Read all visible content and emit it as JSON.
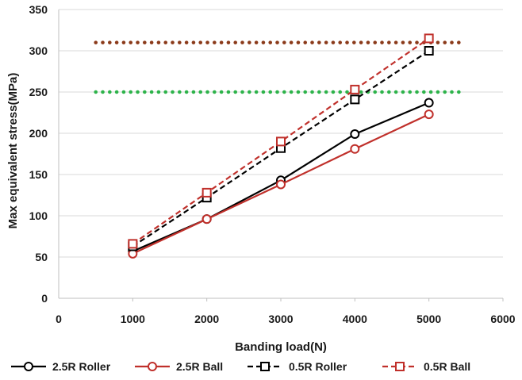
{
  "chart_data": {
    "type": "line",
    "title": "",
    "xlabel": "Banding load(N)",
    "ylabel": "Max equivalent stress(MPa)",
    "xlim": [
      0,
      6000
    ],
    "ylim": [
      0,
      350
    ],
    "xticks": [
      0,
      1000,
      2000,
      3000,
      4000,
      5000,
      6000
    ],
    "yticks": [
      0,
      50,
      100,
      150,
      200,
      250,
      300,
      350
    ],
    "grid": "horizontal",
    "legend_position": "bottom",
    "series": [
      {
        "name": "2.5R Roller",
        "color": "#000000",
        "dash": "solid",
        "marker": "circle",
        "x": [
          1000,
          2000,
          3000,
          4000,
          5000
        ],
        "y": [
          57,
          96,
          143,
          199,
          237
        ]
      },
      {
        "name": "2.5R Ball",
        "color": "#c0302b",
        "dash": "solid",
        "marker": "circle",
        "x": [
          1000,
          2000,
          3000,
          4000,
          5000
        ],
        "y": [
          54,
          96,
          138,
          181,
          223
        ]
      },
      {
        "name": "0.5R Roller",
        "color": "#000000",
        "dash": "dashed",
        "marker": "square",
        "x": [
          1000,
          2000,
          3000,
          4000,
          5000
        ],
        "y": [
          63,
          122,
          182,
          241,
          300
        ]
      },
      {
        "name": "0.5R Ball",
        "color": "#c0302b",
        "dash": "dashed",
        "marker": "square",
        "x": [
          1000,
          2000,
          3000,
          4000,
          5000
        ],
        "y": [
          66,
          128,
          190,
          253,
          315
        ]
      }
    ],
    "reference_lines": [
      {
        "y": 310,
        "x_from": 500,
        "x_to": 5450,
        "color": "#8b3a1a",
        "style": "dotted"
      },
      {
        "y": 250,
        "x_from": 500,
        "x_to": 5450,
        "color": "#2db34a",
        "style": "dotted"
      }
    ]
  }
}
